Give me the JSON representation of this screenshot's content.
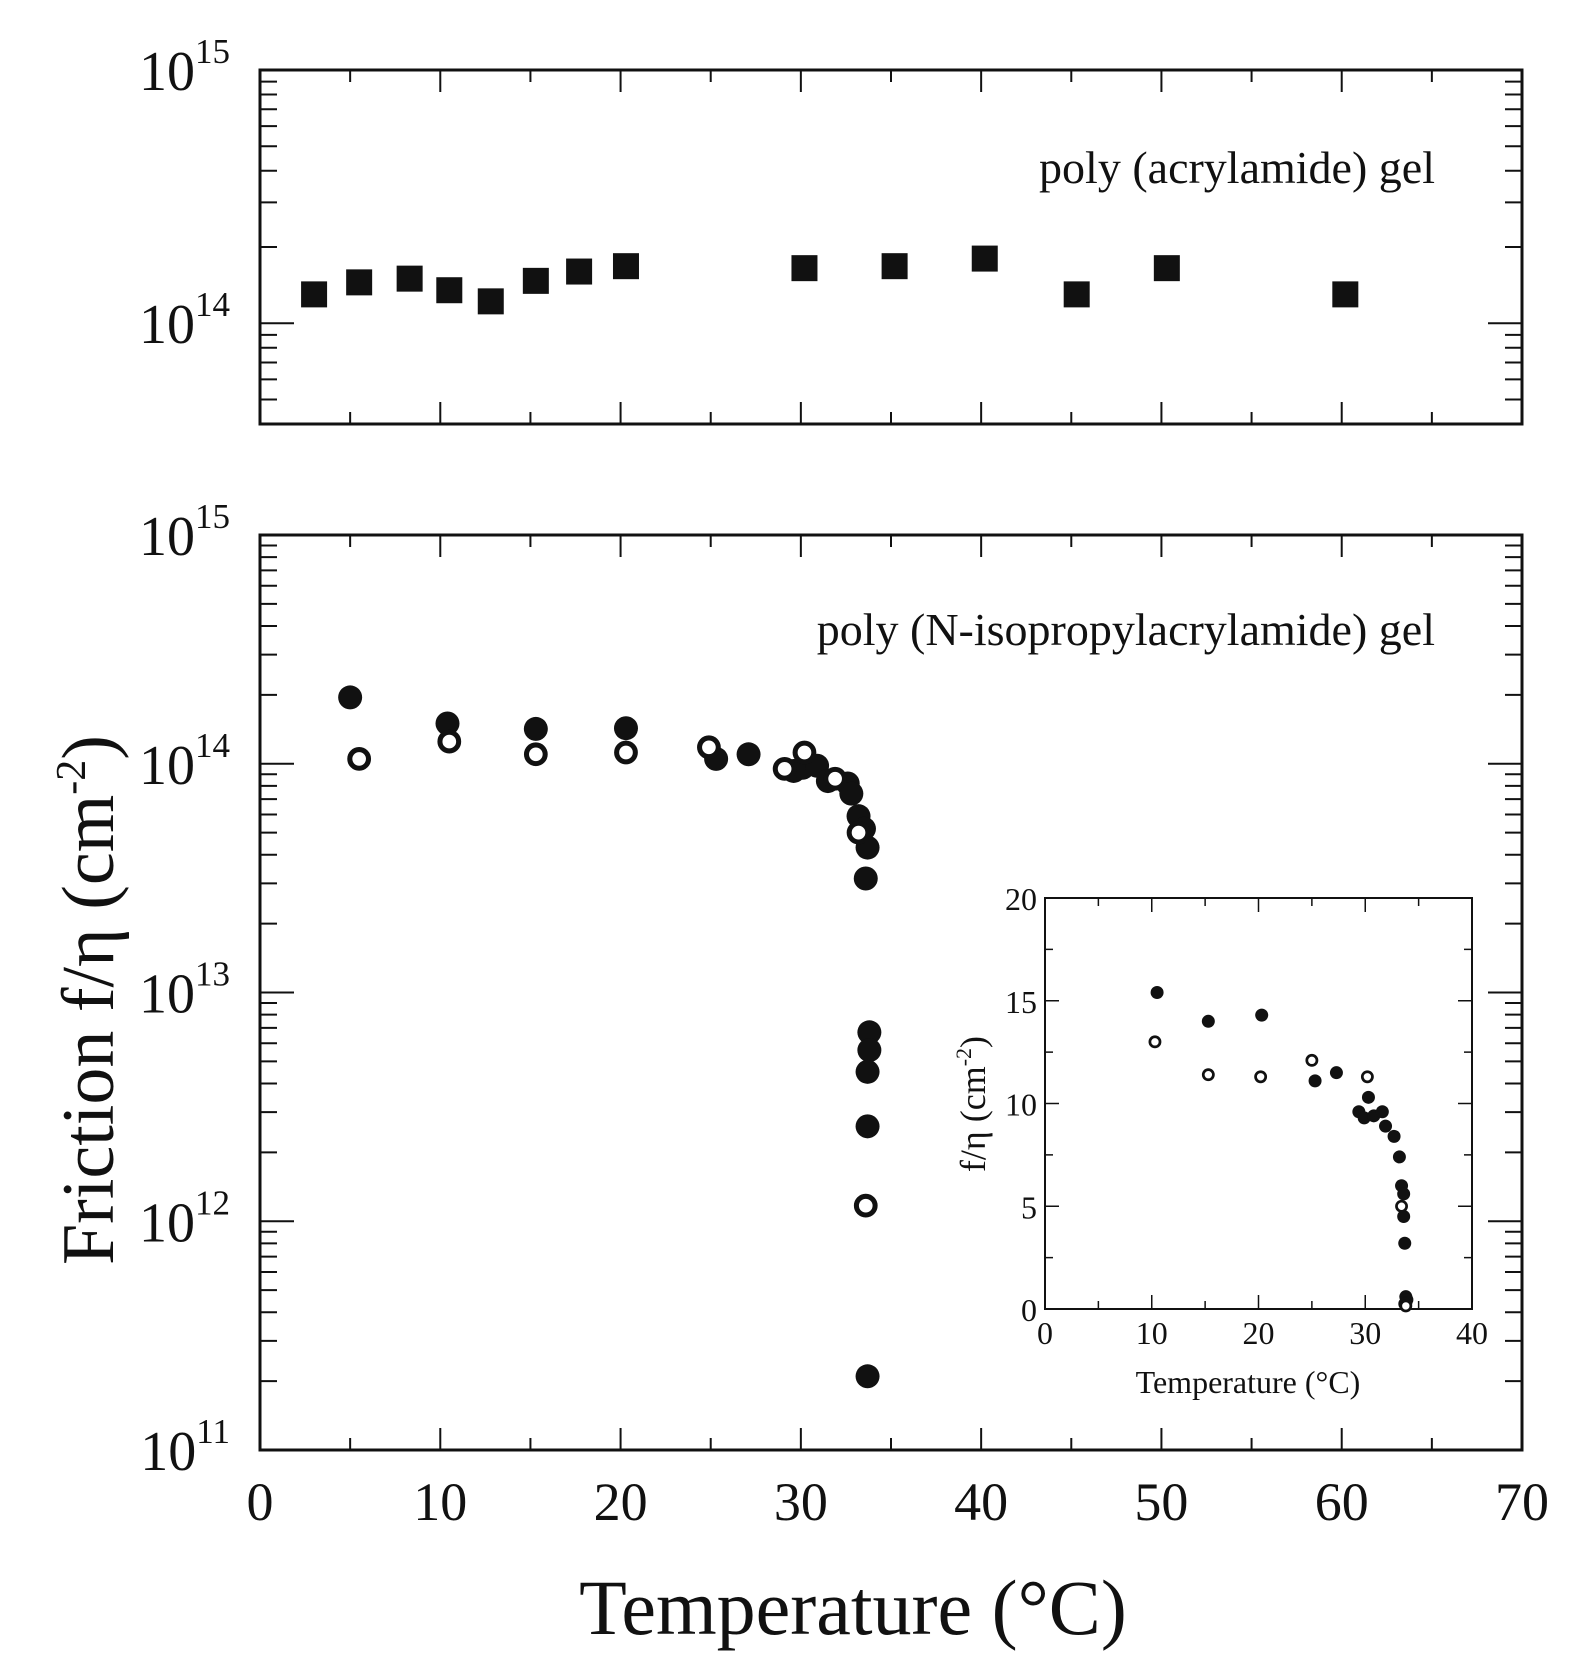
{
  "colors": {
    "ink": "#111111",
    "background": "#ffffff"
  },
  "chart_data": [
    {
      "id": "top",
      "type": "scatter",
      "annotation": "poly (acrylamide) gel",
      "xlim": [
        0,
        70
      ],
      "ylim": [
        40000000000000.0,
        1000000000000000.0
      ],
      "yscale": "log",
      "ytick_labels": [
        {
          "value": 100000000000000.0,
          "base": "10",
          "exp": "14"
        },
        {
          "value": 1000000000000000.0,
          "base": "10",
          "exp": "15"
        }
      ],
      "series": [
        {
          "name": "poly (acrylamide) gel",
          "marker": "square-filled",
          "points": [
            [
              3,
              130000000000000.0
            ],
            [
              5.5,
              145000000000000.0
            ],
            [
              8.3,
              150000000000000.0
            ],
            [
              10.5,
              135000000000000.0
            ],
            [
              12.8,
              122000000000000.0
            ],
            [
              15.3,
              147000000000000.0
            ],
            [
              17.7,
              160000000000000.0
            ],
            [
              20.3,
              168000000000000.0
            ],
            [
              30.2,
              165000000000000.0
            ],
            [
              35.2,
              168000000000000.0
            ],
            [
              40.2,
              180000000000000.0
            ],
            [
              45.3,
              130000000000000.0
            ],
            [
              50.3,
              165000000000000.0
            ],
            [
              60.2,
              130000000000000.0
            ]
          ]
        }
      ]
    },
    {
      "id": "bottom",
      "type": "scatter",
      "annotation": "poly (N-isopropylacrylamide) gel",
      "xlabel": "Temperature (°C)",
      "ylabel": "Friction f/η (cm",
      "ylabel_sup": "-2",
      "ylabel_close": ")",
      "xlim": [
        0,
        70
      ],
      "ylim": [
        100000000000.0,
        1000000000000000.0
      ],
      "yscale": "log",
      "xtick_labels": [
        "0",
        "10",
        "20",
        "30",
        "40",
        "50",
        "60",
        "70"
      ],
      "ytick_labels": [
        {
          "value": 100000000000.0,
          "base": "10",
          "exp": "11"
        },
        {
          "value": 1000000000000.0,
          "base": "10",
          "exp": "12"
        },
        {
          "value": 10000000000000.0,
          "base": "10",
          "exp": "13"
        },
        {
          "value": 100000000000000.0,
          "base": "10",
          "exp": "14"
        },
        {
          "value": 1000000000000000.0,
          "base": "10",
          "exp": "15"
        }
      ],
      "series": [
        {
          "name": "filled",
          "marker": "circle-filled",
          "points": [
            [
              5.0,
              195000000000000.0
            ],
            [
              10.4,
              150000000000000.0
            ],
            [
              15.3,
              142000000000000.0
            ],
            [
              20.3,
              143000000000000.0
            ],
            [
              25.3,
              105000000000000.0
            ],
            [
              27.1,
              110000000000000.0
            ],
            [
              29.6,
              93000000000000.0
            ],
            [
              30.1,
              96000000000000.0
            ],
            [
              30.9,
              98000000000000.0
            ],
            [
              31.5,
              84000000000000.0
            ],
            [
              32.6,
              82000000000000.0
            ],
            [
              32.8,
              74000000000000.0
            ],
            [
              33.2,
              59000000000000.0
            ],
            [
              33.5,
              52000000000000.0
            ],
            [
              33.7,
              43000000000000.0
            ],
            [
              33.6,
              31500000000000.0
            ],
            [
              33.8,
              6700000000000.0
            ],
            [
              33.8,
              5600000000000.0
            ],
            [
              33.7,
              4500000000000.0
            ],
            [
              33.7,
              2600000000000.0
            ],
            [
              33.7,
              210000000000.0
            ]
          ]
        },
        {
          "name": "open",
          "marker": "circle-open",
          "points": [
            [
              5.5,
              105000000000000.0
            ],
            [
              10.5,
              125000000000000.0
            ],
            [
              15.3,
              110000000000000.0
            ],
            [
              20.3,
              112000000000000.0
            ],
            [
              24.9,
              118000000000000.0
            ],
            [
              29.1,
              95000000000000.0
            ],
            [
              30.2,
              112000000000000.0
            ],
            [
              31.9,
              86000000000000.0
            ],
            [
              33.2,
              50000000000000.0
            ],
            [
              33.6,
              1170000000000.0
            ]
          ]
        }
      ]
    },
    {
      "id": "inset",
      "type": "scatter",
      "xlabel": "Temperature (°C)",
      "ylabel": "f/η (cm",
      "ylabel_sup": "-2",
      "ylabel_close": ")",
      "xlim": [
        0,
        40
      ],
      "ylim": [
        0,
        20
      ],
      "xtick_labels": [
        "0",
        "10",
        "20",
        "30",
        "40"
      ],
      "ytick_labels": [
        "0",
        "5",
        "10",
        "15",
        "20"
      ],
      "series": [
        {
          "name": "filled",
          "marker": "circle-filled",
          "points": [
            [
              10.5,
              15.4
            ],
            [
              15.3,
              14.0
            ],
            [
              20.3,
              14.3
            ],
            [
              25.3,
              11.1
            ],
            [
              27.3,
              11.5
            ],
            [
              29.4,
              9.6
            ],
            [
              29.9,
              9.3
            ],
            [
              30.3,
              10.3
            ],
            [
              30.8,
              9.4
            ],
            [
              31.6,
              9.6
            ],
            [
              31.9,
              8.9
            ],
            [
              32.7,
              8.4
            ],
            [
              33.2,
              7.4
            ],
            [
              33.4,
              6.0
            ],
            [
              33.6,
              5.6
            ],
            [
              33.6,
              4.5
            ],
            [
              33.7,
              3.2
            ],
            [
              33.8,
              0.6
            ],
            [
              33.9,
              0.45
            ],
            [
              33.8,
              0.3
            ]
          ]
        },
        {
          "name": "open",
          "marker": "circle-open",
          "points": [
            [
              10.3,
              13.0
            ],
            [
              15.3,
              11.4
            ],
            [
              20.2,
              11.3
            ],
            [
              25.0,
              12.1
            ],
            [
              30.2,
              11.3
            ],
            [
              33.4,
              5.0
            ],
            [
              33.7,
              0.25
            ],
            [
              33.8,
              0.15
            ]
          ]
        }
      ]
    }
  ]
}
